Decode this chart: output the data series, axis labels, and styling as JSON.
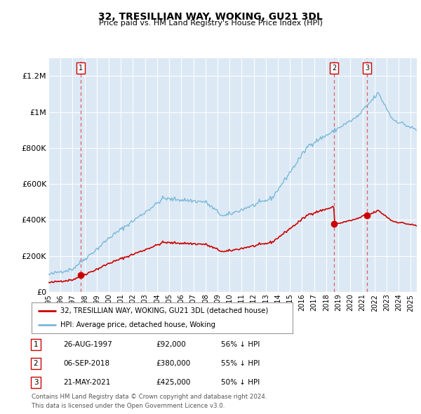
{
  "title": "32, TRESILLIAN WAY, WOKING, GU21 3DL",
  "subtitle": "Price paid vs. HM Land Registry's House Price Index (HPI)",
  "background_color": "#dce9f5",
  "plot_bg_color": "#dce9f5",
  "sale_prices": [
    92000,
    380000,
    425000
  ],
  "sale_labels": [
    "1",
    "2",
    "3"
  ],
  "sale_pct": [
    "56% ↓ HPI",
    "55% ↓ HPI",
    "50% ↓ HPI"
  ],
  "sale_date_labels": [
    "26-AUG-1997",
    "06-SEP-2018",
    "21-MAY-2021"
  ],
  "sale_price_labels": [
    "£92,000",
    "£380,000",
    "£425,000"
  ],
  "sale_year_nums": [
    1997.646,
    2018.671,
    2021.38
  ],
  "legend_line1": "32, TRESILLIAN WAY, WOKING, GU21 3DL (detached house)",
  "legend_line2": "HPI: Average price, detached house, Woking",
  "footer1": "Contains HM Land Registry data © Crown copyright and database right 2024.",
  "footer2": "This data is licensed under the Open Government Licence v3.0.",
  "ylim": [
    0,
    1300000
  ],
  "xlim": [
    1995.0,
    2025.5
  ],
  "yticks": [
    0,
    200000,
    400000,
    600000,
    800000,
    1000000,
    1200000
  ],
  "ytick_labels": [
    "£0",
    "£200K",
    "£400K",
    "£600K",
    "£800K",
    "£1M",
    "£1.2M"
  ],
  "xtick_years": [
    1995,
    1996,
    1997,
    1998,
    1999,
    2000,
    2001,
    2002,
    2003,
    2004,
    2005,
    2006,
    2007,
    2008,
    2009,
    2010,
    2011,
    2012,
    2013,
    2014,
    2015,
    2016,
    2017,
    2018,
    2019,
    2020,
    2021,
    2022,
    2023,
    2024,
    2025
  ],
  "hpi_color": "#7ab8d9",
  "price_color": "#cc0000",
  "dashed_color": "#e05050"
}
